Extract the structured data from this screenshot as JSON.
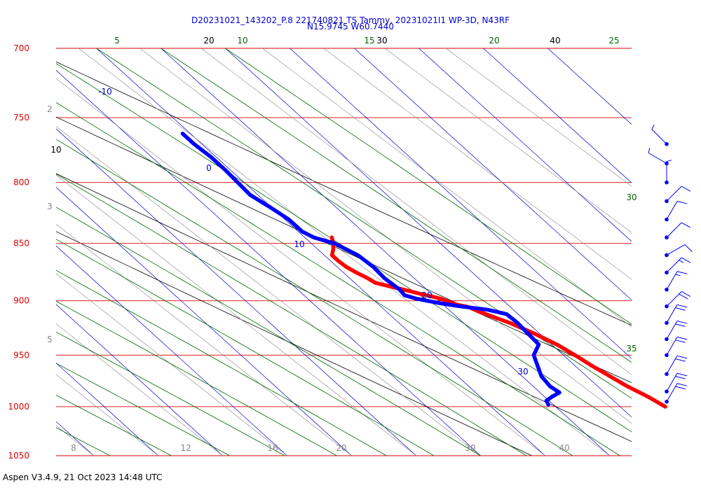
{
  "header": {
    "title_line1": "D20231021_143202_P.8 221740821 TS Tammy, 20231021I1 WP-3D, N43RF",
    "title_line2": "N15.9745 W60.7440"
  },
  "footer": {
    "text": "Aspen V3.4.9, 21 Oct 2023  14:48 UTC"
  },
  "colors": {
    "isobar": "#dd0000",
    "isotherm": "#0000cc",
    "dry_adiabat": "#000000",
    "moist_adiabat": "#006600",
    "mixing_ratio": "#888888",
    "temperature": "#ff0000",
    "dewpoint": "#0000ff",
    "wind": "#0000ff"
  },
  "chart_data": {
    "type": "skew-t",
    "y_axis": {
      "label": "",
      "scale": "log",
      "range": [
        1050,
        700
      ],
      "ticks": [
        700,
        750,
        800,
        850,
        900,
        950,
        1000,
        1050
      ]
    },
    "isotherms": [
      -10,
      0,
      10,
      20,
      30
    ],
    "dry_adiabat_labels": [
      10,
      20,
      30,
      40
    ],
    "moist_adiabat_labels": [
      5,
      10,
      15,
      20,
      25,
      30,
      35
    ],
    "mixing_ratio_labels": [
      2,
      3,
      5,
      8,
      12,
      16,
      20,
      30,
      40
    ],
    "series": [
      {
        "key": "temperature",
        "points": [
          [
            1000,
            28.5
          ],
          [
            990,
            28.0
          ],
          [
            980,
            27.3
          ],
          [
            970,
            26.8
          ],
          [
            960,
            26.3
          ],
          [
            950,
            25.9
          ],
          [
            940,
            25.4
          ],
          [
            930,
            24.6
          ],
          [
            920,
            23.6
          ],
          [
            915,
            22.9
          ],
          [
            910,
            22.2
          ],
          [
            906,
            21.8
          ],
          [
            905,
            21.6
          ],
          [
            904,
            21.2
          ],
          [
            902,
            20.8
          ],
          [
            898,
            20.3
          ],
          [
            894,
            19.2
          ],
          [
            890,
            18.2
          ],
          [
            886,
            17.1
          ],
          [
            884,
            16.6
          ],
          [
            880,
            16.4
          ],
          [
            875,
            16.0
          ],
          [
            870,
            15.7
          ],
          [
            865,
            15.6
          ],
          [
            860,
            15.6
          ],
          [
            855,
            16.2
          ],
          [
            850,
            16.7
          ],
          [
            845,
            17.1
          ]
        ]
      },
      {
        "key": "dewpoint",
        "points": [
          [
            998,
            19.6
          ],
          [
            994,
            19.8
          ],
          [
            990,
            20.6
          ],
          [
            986,
            21.5
          ],
          [
            980,
            21.3
          ],
          [
            970,
            21.5
          ],
          [
            960,
            22.1
          ],
          [
            950,
            22.7
          ],
          [
            940,
            24.0
          ],
          [
            930,
            24.1
          ],
          [
            920,
            24.2
          ],
          [
            912,
            24.1
          ],
          [
            908,
            23.0
          ],
          [
            905,
            21.2
          ],
          [
            902,
            19.8
          ],
          [
            898,
            18.4
          ],
          [
            895,
            17.8
          ],
          [
            890,
            17.9
          ],
          [
            880,
            17.7
          ],
          [
            870,
            17.8
          ],
          [
            860,
            17.6
          ],
          [
            850,
            16.8
          ],
          [
            845,
            15.7
          ],
          [
            840,
            15.3
          ],
          [
            830,
            15.3
          ],
          [
            820,
            14.9
          ],
          [
            810,
            14.4
          ],
          [
            800,
            14.5
          ],
          [
            790,
            14.6
          ],
          [
            780,
            14.6
          ],
          [
            770,
            14.4
          ],
          [
            762,
            14.4
          ]
        ]
      }
    ],
    "wind_barbs": [
      {
        "pressure": 770,
        "dir": 315,
        "kts": 5
      },
      {
        "pressure": 785,
        "dir": 300,
        "kts": 5
      },
      {
        "pressure": 800,
        "dir": 0,
        "kts": 5
      },
      {
        "pressure": 815,
        "dir": 45,
        "kts": 10
      },
      {
        "pressure": 830,
        "dir": 30,
        "kts": 10
      },
      {
        "pressure": 845,
        "dir": 45,
        "kts": 10
      },
      {
        "pressure": 860,
        "dir": 60,
        "kts": 10
      },
      {
        "pressure": 875,
        "dir": 45,
        "kts": 15
      },
      {
        "pressure": 890,
        "dir": 30,
        "kts": 15
      },
      {
        "pressure": 905,
        "dir": 45,
        "kts": 20
      },
      {
        "pressure": 920,
        "dir": 30,
        "kts": 20
      },
      {
        "pressure": 935,
        "dir": 30,
        "kts": 20
      },
      {
        "pressure": 950,
        "dir": 30,
        "kts": 20
      },
      {
        "pressure": 968,
        "dir": 30,
        "kts": 20
      },
      {
        "pressure": 985,
        "dir": 30,
        "kts": 20
      },
      {
        "pressure": 995,
        "dir": 30,
        "kts": 20
      }
    ]
  }
}
